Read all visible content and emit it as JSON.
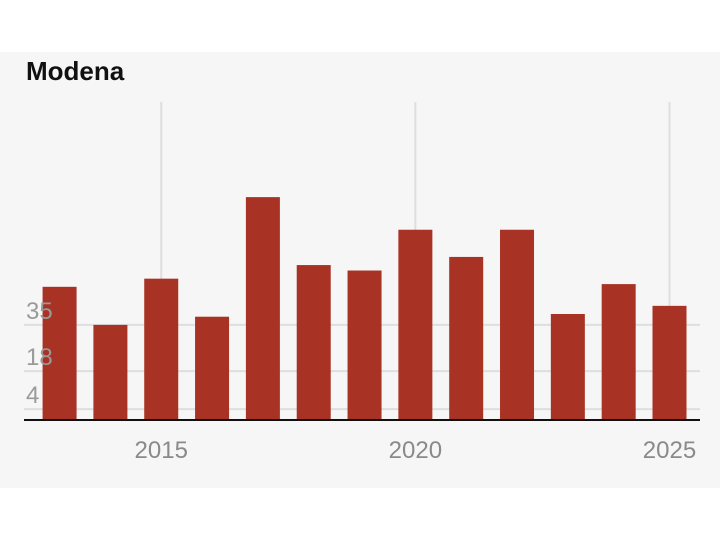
{
  "chart_data": {
    "type": "bar",
    "title": "Modena",
    "xlabel": "",
    "ylabel": "",
    "x": [
      2013,
      2014,
      2015,
      2016,
      2017,
      2018,
      2019,
      2020,
      2021,
      2022,
      2023,
      2024,
      2025
    ],
    "values": [
      49,
      35,
      52,
      38,
      82,
      57,
      55,
      70,
      60,
      70,
      39,
      50,
      42
    ],
    "y_ticks": [
      4,
      18,
      35
    ],
    "y_tick_labels": [
      "4",
      "18",
      "35"
    ],
    "x_ticks": [
      2015,
      2020,
      2025
    ],
    "x_tick_labels": [
      "2015",
      "2020",
      "2025"
    ],
    "ylim": [
      0,
      117
    ],
    "xlim": [
      2012.3,
      2025.6
    ],
    "grid": true,
    "bar_color": "#a83224"
  }
}
